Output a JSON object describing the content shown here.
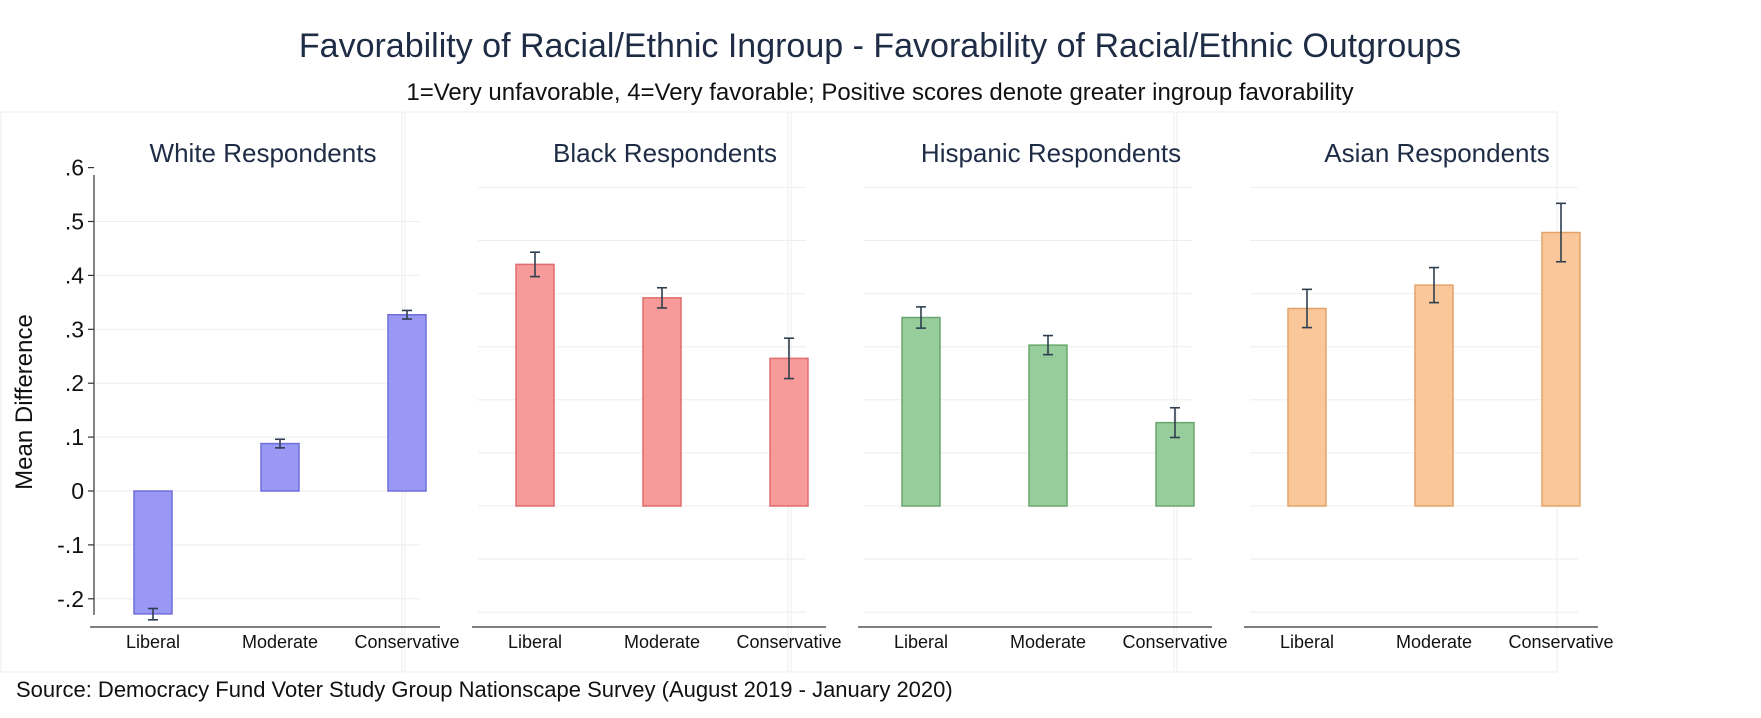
{
  "figure": {
    "title": "Favorability of Racial/Ethnic Ingroup - Favorability of Racial/Ethnic Outgroups",
    "subtitle": "1=Very unfavorable, 4=Very favorable; Positive scores denote greater ingroup favorability",
    "source": "Source: Democracy Fund Voter Study Group Nationscape Survey (August 2019 - January 2020)"
  },
  "chart_data": {
    "type": "bar",
    "ylabel": "Mean Difference",
    "ylim": [
      -0.25,
      0.63
    ],
    "y_ticks": [
      -0.2,
      -0.1,
      0,
      0.1,
      0.2,
      0.3,
      0.4,
      0.5,
      0.6
    ],
    "y_tick_labels": [
      "-.2",
      "-.1",
      "0",
      ".1",
      ".2",
      ".3",
      ".4",
      ".5",
      ".6"
    ],
    "categories": [
      "Liberal",
      "Moderate",
      "Conservative"
    ],
    "grid": true,
    "error_bars": true,
    "panels": [
      {
        "name": "White Respondents",
        "color": "#9999f5",
        "stroke": "#6f6fd8",
        "values": [
          -0.228,
          0.088,
          0.327
        ],
        "ci_low": [
          -0.239,
          0.08,
          0.319
        ],
        "ci_high": [
          -0.218,
          0.096,
          0.335
        ]
      },
      {
        "name": "Black Respondents",
        "color": "#f79a9a",
        "stroke": "#e06d6d",
        "values": [
          0.455,
          0.392,
          0.278
        ],
        "ci_low": [
          0.432,
          0.373,
          0.24
        ],
        "ci_high": [
          0.478,
          0.411,
          0.316
        ]
      },
      {
        "name": "Hispanic Respondents",
        "color": "#97cd9b",
        "stroke": "#6aa56f",
        "values": [
          0.355,
          0.303,
          0.157
        ],
        "ci_low": [
          0.335,
          0.285,
          0.129
        ],
        "ci_high": [
          0.375,
          0.321,
          0.185
        ]
      },
      {
        "name": "Asian Respondents",
        "color": "#fac79b",
        "stroke": "#e2a468",
        "values": [
          0.372,
          0.416,
          0.515
        ],
        "ci_low": [
          0.336,
          0.383,
          0.46
        ],
        "ci_high": [
          0.408,
          0.449,
          0.57
        ]
      }
    ]
  }
}
